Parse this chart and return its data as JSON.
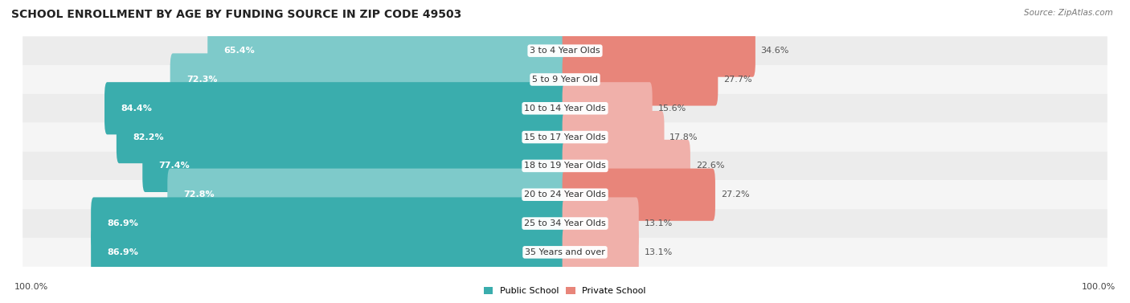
{
  "title": "SCHOOL ENROLLMENT BY AGE BY FUNDING SOURCE IN ZIP CODE 49503",
  "source": "Source: ZipAtlas.com",
  "categories": [
    "3 to 4 Year Olds",
    "5 to 9 Year Old",
    "10 to 14 Year Olds",
    "15 to 17 Year Olds",
    "18 to 19 Year Olds",
    "20 to 24 Year Olds",
    "25 to 34 Year Olds",
    "35 Years and over"
  ],
  "public_values": [
    65.4,
    72.3,
    84.4,
    82.2,
    77.4,
    72.8,
    86.9,
    86.9
  ],
  "private_values": [
    34.6,
    27.7,
    15.6,
    17.8,
    22.6,
    27.2,
    13.1,
    13.1
  ],
  "public_colors": [
    "#7ecaca",
    "#7ecaca",
    "#3aadad",
    "#3aadad",
    "#3aadad",
    "#7ecaca",
    "#3aadad",
    "#3aadad"
  ],
  "private_colors": [
    "#e8857a",
    "#e8857a",
    "#f0b0aa",
    "#f0b0aa",
    "#f0b0aa",
    "#e8857a",
    "#f0b0aa",
    "#f0b0aa"
  ],
  "row_bg_colors": [
    "#ececec",
    "#f5f5f5",
    "#ececec",
    "#f5f5f5",
    "#ececec",
    "#f5f5f5",
    "#ececec",
    "#f5f5f5"
  ],
  "title_fontsize": 10,
  "label_fontsize": 8,
  "value_fontsize": 8,
  "source_fontsize": 7.5,
  "legend_fontsize": 8,
  "left_axis_label": "100.0%",
  "right_axis_label": "100.0%",
  "pub_label_color": "white",
  "priv_label_color": "#555555"
}
